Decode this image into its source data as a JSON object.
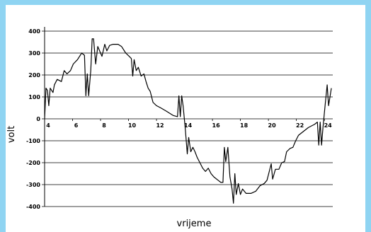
{
  "chart_data": {
    "type": "line",
    "x_label": "vrijeme",
    "y_label": "volt",
    "xlim": [
      4,
      24.6
    ],
    "ylim": [
      -400,
      400
    ],
    "xticks": [
      4,
      6,
      8,
      10,
      12,
      14,
      16,
      18,
      20,
      22,
      24
    ],
    "yticks": [
      -400,
      -300,
      -200,
      -100,
      0,
      100,
      200,
      300,
      400
    ],
    "grid": true,
    "color": "#000000",
    "x": [
      4.0,
      4.1,
      4.2,
      4.3,
      4.4,
      4.6,
      4.7,
      4.9,
      5.2,
      5.4,
      5.6,
      5.85,
      6.05,
      6.35,
      6.65,
      6.85,
      6.95,
      7.05,
      7.15,
      7.3,
      7.4,
      7.5,
      7.65,
      7.8,
      8.0,
      8.1,
      8.3,
      8.45,
      8.65,
      8.9,
      9.25,
      9.5,
      9.8,
      10.05,
      10.2,
      10.3,
      10.4,
      10.55,
      10.7,
      10.9,
      11.1,
      11.25,
      11.4,
      11.55,
      11.75,
      12.0,
      12.3,
      12.7,
      12.95,
      13.2,
      13.5,
      13.6,
      13.7,
      13.8,
      13.9,
      14.05,
      14.2,
      14.3,
      14.45,
      14.6,
      14.75,
      14.9,
      15.1,
      15.3,
      15.5,
      15.7,
      15.9,
      16.1,
      16.4,
      16.6,
      16.75,
      16.85,
      16.95,
      17.1,
      17.25,
      17.4,
      17.5,
      17.6,
      17.7,
      17.85,
      18.0,
      18.15,
      18.4,
      18.75,
      19.1,
      19.4,
      19.7,
      19.9,
      20.2,
      20.3,
      20.5,
      20.75,
      20.95,
      21.15,
      21.3,
      21.55,
      21.75,
      21.95,
      22.15,
      22.45,
      22.85,
      23.3,
      23.5,
      23.6,
      23.7,
      23.8,
      23.9,
      24.05,
      24.2,
      24.3,
      24.5
    ],
    "values": [
      0,
      140,
      130,
      60,
      140,
      120,
      155,
      180,
      170,
      220,
      205,
      220,
      250,
      270,
      300,
      290,
      105,
      205,
      105,
      220,
      365,
      365,
      250,
      330,
      300,
      285,
      340,
      310,
      335,
      340,
      340,
      330,
      300,
      285,
      275,
      195,
      270,
      220,
      235,
      195,
      205,
      170,
      140,
      125,
      75,
      60,
      50,
      35,
      25,
      15,
      10,
      105,
      10,
      105,
      60,
      -40,
      -160,
      -85,
      -150,
      -130,
      -150,
      -175,
      -200,
      -225,
      -240,
      -225,
      -250,
      -265,
      -280,
      -290,
      -290,
      -130,
      -195,
      -130,
      -265,
      -320,
      -385,
      -250,
      -345,
      -295,
      -345,
      -320,
      -340,
      -340,
      -330,
      -305,
      -295,
      -280,
      -205,
      -275,
      -230,
      -230,
      -200,
      -195,
      -150,
      -135,
      -130,
      -100,
      -75,
      -60,
      -40,
      -25,
      -15,
      -120,
      -15,
      -120,
      -40,
      60,
      155,
      60,
      140
    ]
  }
}
